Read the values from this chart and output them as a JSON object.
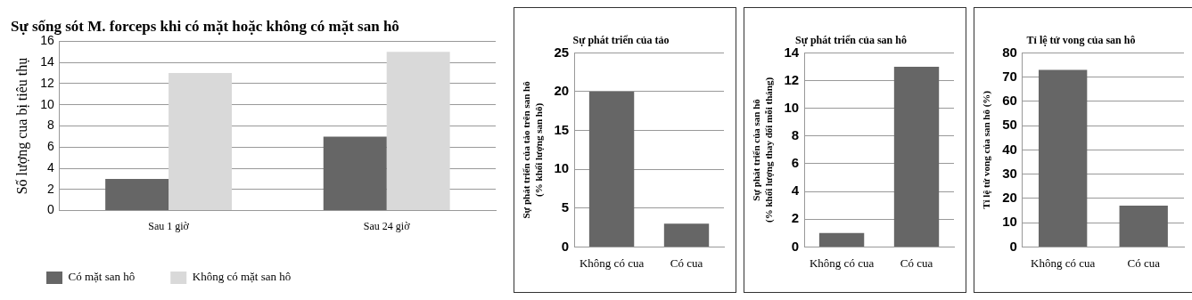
{
  "chart_data": [
    {
      "type": "bar",
      "title": "Sự sống sót M. forceps khi có mặt hoặc không có mặt san hô",
      "ylabel": "Số lượng cua bị tiêu thụ",
      "categories": [
        "Sau 1 giờ",
        "Sau 24 giờ"
      ],
      "series": [
        {
          "name": "Có mặt san hô",
          "color": "#666666",
          "values": [
            3,
            7
          ]
        },
        {
          "name": "Không có mặt san hô",
          "color": "#d9d9d9",
          "values": [
            13,
            15
          ]
        }
      ],
      "ylim": [
        0,
        16
      ],
      "yticks": [
        0,
        2,
        4,
        6,
        8,
        10,
        12,
        14,
        16
      ],
      "grid": "y",
      "legend": "bottom left"
    },
    {
      "type": "bar",
      "title": "Sự phát triển của tảo",
      "ylabel": "Sự phát triển của tảo trên san hô\n(% khối lượng san hô)",
      "categories": [
        "Không có cua",
        "Có cua"
      ],
      "series": [
        {
          "color": "#666666",
          "values": [
            20,
            3
          ]
        }
      ],
      "ylim": [
        0,
        25
      ],
      "yticks": [
        0,
        5,
        10,
        15,
        20,
        25
      ],
      "grid": "y"
    },
    {
      "type": "bar",
      "title": "Sự phát triển của san hô",
      "ylabel": "Sự phát triển của san hô\n(% khối lượng thay đổi mỗi tháng)",
      "categories": [
        "Không có cua",
        "Có cua"
      ],
      "series": [
        {
          "color": "#666666",
          "values": [
            1,
            13
          ]
        }
      ],
      "ylim": [
        0,
        14
      ],
      "yticks": [
        0,
        2,
        4,
        6,
        8,
        10,
        12,
        14
      ],
      "grid": "y"
    },
    {
      "type": "bar",
      "title": "Tỉ lệ tử vong của san hô",
      "ylabel": "Tỉ lệ tử vong của san hô (%)",
      "categories": [
        "Không có cua",
        "Có cua"
      ],
      "series": [
        {
          "color": "#666666",
          "values": [
            73,
            17
          ]
        }
      ],
      "ylim": [
        0,
        80
      ],
      "yticks": [
        0,
        10,
        20,
        30,
        40,
        50,
        60,
        70,
        80
      ],
      "grid": "y"
    }
  ]
}
